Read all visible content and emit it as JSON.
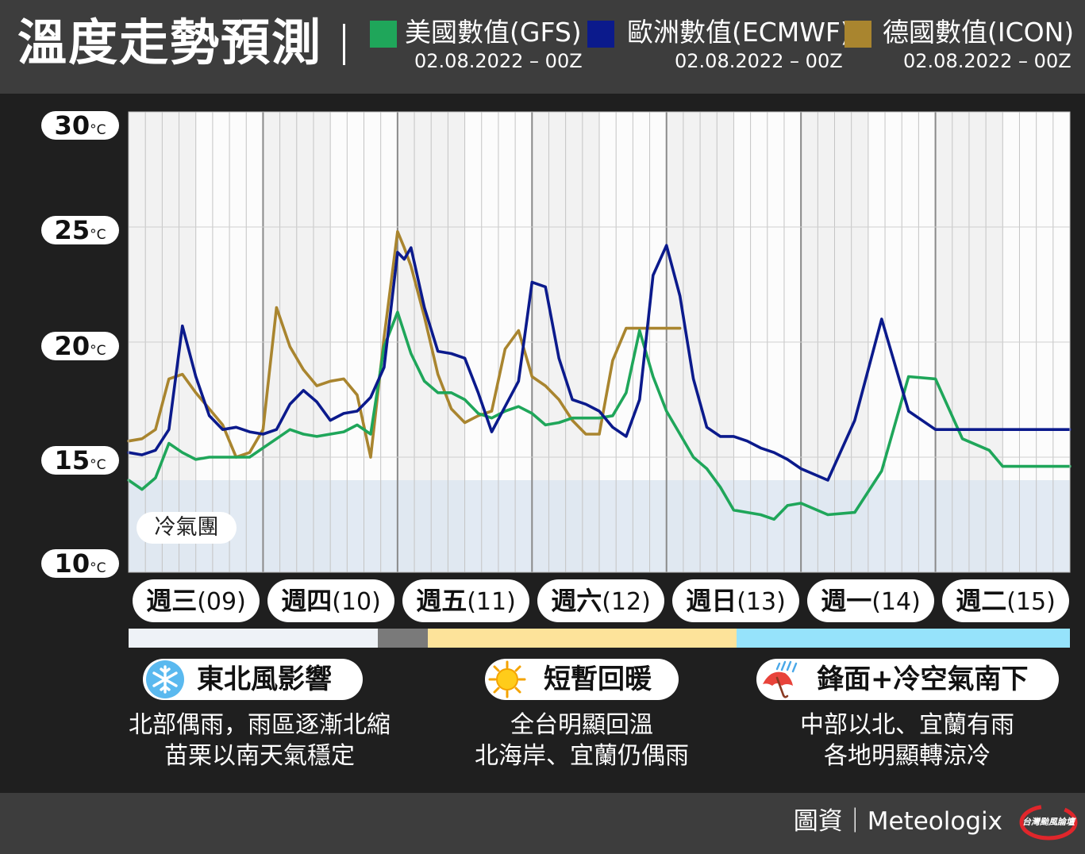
{
  "title": "溫度走勢預測",
  "legend": [
    {
      "name": "美國數值(GFS)",
      "date": "02.08.2022 – 00Z",
      "color": "#1fa65a"
    },
    {
      "name": "歐洲數值(ECMWF)",
      "date": "02.08.2022 – 00Z",
      "color": "#0b1a8c"
    },
    {
      "name": "德國數值(ICON)",
      "date": "02.08.2022 – 00Z",
      "color": "#a9852f"
    }
  ],
  "yticks": [
    {
      "num": "30",
      "unit": "°C",
      "value": 30
    },
    {
      "num": "25",
      "unit": "°C",
      "value": 25
    },
    {
      "num": "20",
      "unit": "°C",
      "value": 20
    },
    {
      "num": "15",
      "unit": "°C",
      "value": 15
    },
    {
      "num": "10",
      "unit": "°C",
      "value": 10
    }
  ],
  "cold_zone": {
    "label": "冷氣團",
    "upper": 14,
    "color": "#dde6f1"
  },
  "days": [
    {
      "name": "週三",
      "date": "(09)"
    },
    {
      "name": "週四",
      "date": "(10)"
    },
    {
      "name": "週五",
      "date": "(11)"
    },
    {
      "name": "週六",
      "date": "(12)"
    },
    {
      "name": "週日",
      "date": "(13)"
    },
    {
      "name": "週一",
      "date": "(14)"
    },
    {
      "name": "週二",
      "date": "(15)"
    }
  ],
  "phases": [
    {
      "title": "東北風影響",
      "icon": "snowflake-icon",
      "lines": [
        "北部偶雨，雨區逐漸北縮",
        "苗栗以南天氣穩定"
      ],
      "color": "#eef2f7"
    },
    {
      "title": "短暫回暖",
      "icon": "sun-icon",
      "lines": [
        "全台明顯回溫",
        "北海岸、宜蘭仍偶雨"
      ],
      "color": "#fde39a"
    },
    {
      "title": "鋒面+冷空氣南下",
      "icon": "umbrella-rain-icon",
      "lines": [
        "中部以北、宜蘭有雨",
        "各地明顯轉涼冷"
      ],
      "color": "#96e3fb"
    }
  ],
  "transition_color": "#7a7a7a",
  "credit": "圖資｜Meteologix",
  "logo_text": "台灣颱風論壇",
  "chart_data": {
    "type": "line",
    "title": "溫度走勢預測",
    "xlabel": "",
    "ylabel": "",
    "x_unit": "day offset from 週三(09) 00h",
    "xlim": [
      0,
      7
    ],
    "ylim": [
      10,
      30
    ],
    "grid": true,
    "series": [
      {
        "name": "美國數值(GFS)",
        "color": "#1fa65a",
        "x": [
          0,
          0.1,
          0.2,
          0.3,
          0.4,
          0.5,
          0.6,
          0.7,
          0.8,
          0.9,
          1.0,
          1.1,
          1.2,
          1.3,
          1.4,
          1.5,
          1.6,
          1.7,
          1.8,
          1.9,
          2.0,
          2.1,
          2.2,
          2.3,
          2.4,
          2.5,
          2.6,
          2.7,
          2.8,
          2.9,
          3.0,
          3.1,
          3.2,
          3.3,
          3.4,
          3.5,
          3.6,
          3.7,
          3.8,
          3.9,
          4.0,
          4.1,
          4.2,
          4.3,
          4.4,
          4.5,
          4.6,
          4.7,
          4.8,
          4.9,
          5.0,
          5.2,
          5.4,
          5.6,
          5.8,
          6.0,
          6.2,
          6.4,
          6.5,
          6.6,
          6.7,
          6.8,
          6.9,
          7.0
        ],
        "values": [
          14.0,
          13.6,
          14.1,
          15.6,
          15.2,
          14.9,
          15.0,
          15.0,
          15.0,
          15.0,
          15.4,
          15.8,
          16.2,
          16.0,
          15.9,
          16.0,
          16.1,
          16.4,
          16.0,
          19.8,
          21.3,
          19.5,
          18.3,
          17.8,
          17.8,
          17.5,
          16.9,
          16.7,
          17.0,
          17.2,
          16.9,
          16.4,
          16.5,
          16.7,
          16.7,
          16.7,
          16.8,
          17.8,
          20.5,
          18.5,
          17.0,
          16.0,
          15.0,
          14.5,
          13.7,
          12.7,
          12.6,
          12.5,
          12.3,
          12.9,
          13.0,
          12.5,
          12.6,
          14.4,
          18.5,
          18.4,
          15.8,
          15.3,
          14.6,
          14.6,
          14.6,
          14.6,
          14.6,
          14.6
        ]
      },
      {
        "name": "歐洲數值(ECMWF)",
        "color": "#0b1a8c",
        "x": [
          0,
          0.1,
          0.2,
          0.3,
          0.4,
          0.5,
          0.6,
          0.7,
          0.8,
          0.9,
          1.0,
          1.1,
          1.2,
          1.3,
          1.4,
          1.5,
          1.6,
          1.7,
          1.8,
          1.9,
          2.0,
          2.05,
          2.1,
          2.2,
          2.3,
          2.4,
          2.5,
          2.6,
          2.7,
          2.8,
          2.9,
          3.0,
          3.1,
          3.2,
          3.3,
          3.4,
          3.5,
          3.6,
          3.7,
          3.8,
          3.9,
          4.0,
          4.1,
          4.2,
          4.3,
          4.4,
          4.5,
          4.6,
          4.7,
          4.8,
          4.9,
          5.0,
          5.2,
          5.4,
          5.6,
          5.8,
          6.0,
          6.1,
          6.2,
          6.3,
          6.4,
          6.5,
          6.6,
          6.7,
          6.8,
          6.9,
          7.0
        ],
        "values": [
          15.2,
          15.1,
          15.3,
          16.2,
          20.7,
          18.5,
          16.8,
          16.2,
          16.3,
          16.1,
          16.0,
          16.2,
          17.3,
          17.9,
          17.4,
          16.6,
          16.9,
          17.0,
          17.6,
          18.9,
          23.9,
          23.6,
          24.1,
          21.5,
          19.6,
          19.5,
          19.3,
          17.8,
          16.1,
          17.2,
          18.3,
          22.6,
          22.4,
          19.3,
          17.5,
          17.3,
          17.0,
          16.3,
          15.9,
          17.5,
          22.9,
          24.2,
          22.0,
          18.4,
          16.3,
          15.9,
          15.9,
          15.7,
          15.4,
          15.2,
          14.9,
          14.5,
          14.0,
          16.6,
          21.0,
          17.0,
          16.2,
          16.2,
          16.2,
          16.2,
          16.2,
          16.2,
          16.2,
          16.2,
          16.2,
          16.2,
          16.2
        ]
      },
      {
        "name": "德國數值(ICON)",
        "color": "#a9852f",
        "x": [
          0,
          0.1,
          0.2,
          0.3,
          0.4,
          0.5,
          0.6,
          0.7,
          0.8,
          0.9,
          1.0,
          1.1,
          1.2,
          1.3,
          1.4,
          1.5,
          1.6,
          1.7,
          1.8,
          1.9,
          2.0,
          2.05,
          2.1,
          2.2,
          2.3,
          2.4,
          2.5,
          2.6,
          2.7,
          2.8,
          2.9,
          3.0,
          3.1,
          3.2,
          3.3,
          3.4,
          3.5,
          3.6,
          3.7,
          3.8,
          3.9,
          4.0,
          4.1
        ],
        "values": [
          15.7,
          15.8,
          16.2,
          18.4,
          18.6,
          17.8,
          17.1,
          16.4,
          15.0,
          15.2,
          16.2,
          21.5,
          19.8,
          18.8,
          18.1,
          18.3,
          18.4,
          17.7,
          15.0,
          20.2,
          24.8,
          24.1,
          23.3,
          21.1,
          18.6,
          17.1,
          16.5,
          16.8,
          17.0,
          19.7,
          20.5,
          18.5,
          18.1,
          17.5,
          16.6,
          16.0,
          16.0,
          19.2,
          20.6,
          20.6,
          20.6,
          20.6,
          20.6
        ]
      }
    ]
  }
}
